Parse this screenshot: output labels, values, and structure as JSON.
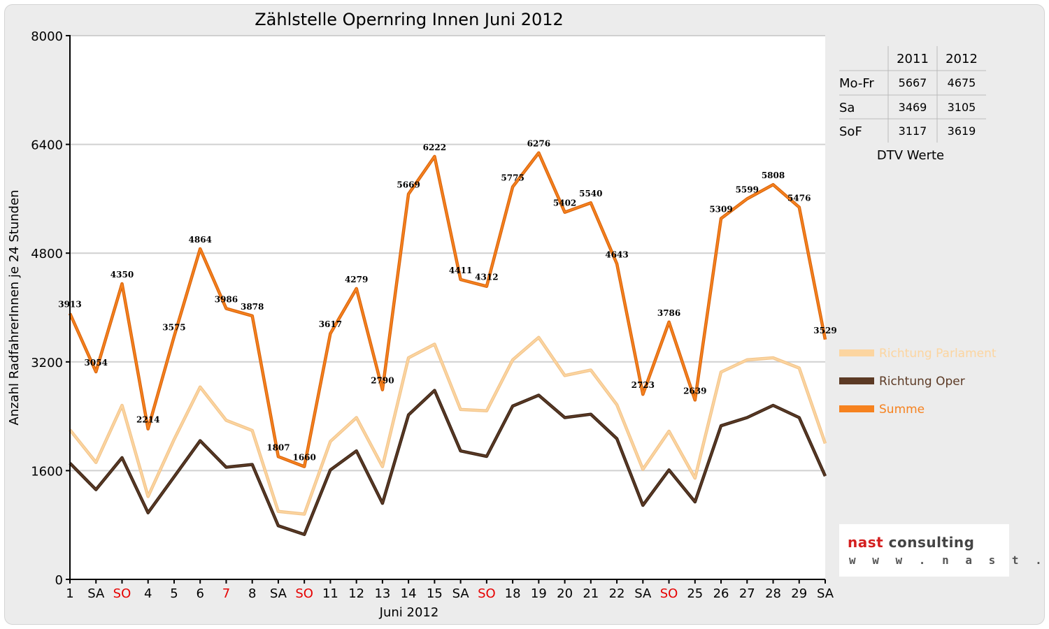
{
  "chart_data": {
    "type": "line",
    "title": "Zählstelle Opernring Innen Juni 2012",
    "xlabel": "Juni 2012",
    "ylabel": "Anzahl RadfahrerInnen je 24 Stunden",
    "ylim": [
      0,
      8000
    ],
    "yticks": [
      0,
      1600,
      3200,
      4800,
      6400,
      8000
    ],
    "grid": true,
    "legend_position": "right",
    "categories": [
      "1",
      "SA",
      "SO",
      "4",
      "5",
      "6",
      "7",
      "8",
      "SA",
      "SO",
      "11",
      "12",
      "13",
      "14",
      "15",
      "SA",
      "SO",
      "18",
      "19",
      "20",
      "21",
      "22",
      "SA",
      "SO",
      "25",
      "26",
      "27",
      "28",
      "29",
      "SA"
    ],
    "highlighted_categories": [
      2,
      6,
      9,
      16,
      23
    ],
    "series": [
      {
        "name": "Richtung Parlament",
        "color": "#fcd5a0",
        "values": [
          2200,
          1720,
          2560,
          1220,
          2060,
          2830,
          2340,
          2190,
          1000,
          960,
          2030,
          2380,
          1660,
          3260,
          3460,
          2500,
          2480,
          3230,
          3560,
          3000,
          3080,
          2570,
          1620,
          2180,
          1490,
          3050,
          3230,
          3260,
          3110,
          2000
        ],
        "labels": null
      },
      {
        "name": "Richtung Oper",
        "color": "#5c3a25",
        "values": [
          1710,
          1320,
          1790,
          980,
          1510,
          2040,
          1650,
          1690,
          790,
          660,
          1610,
          1890,
          1120,
          2420,
          2780,
          1890,
          1810,
          2550,
          2710,
          2380,
          2430,
          2070,
          1090,
          1610,
          1140,
          2260,
          2380,
          2560,
          2380,
          1520
        ],
        "labels": null
      },
      {
        "name": "Summe",
        "color": "#f6821f",
        "values": [
          3913,
          3054,
          4350,
          2214,
          3575,
          4864,
          3986,
          3878,
          1807,
          1660,
          3617,
          4279,
          2790,
          5669,
          6222,
          4411,
          4312,
          5775,
          6276,
          5402,
          5540,
          4643,
          2723,
          3786,
          2639,
          5309,
          5599,
          5808,
          5476,
          3529
        ],
        "labels": [
          "3913",
          "3054",
          "4350",
          "2214",
          "3575",
          "4864",
          "3986",
          "3878",
          "1807",
          "1660",
          "3617",
          "4279",
          "2790",
          "5669",
          "6222",
          "4411",
          "4312",
          "5775",
          "6276",
          "5402",
          "5540",
          "4643",
          "2723",
          "3786",
          "2639",
          "5309",
          "5599",
          "5808",
          "5476",
          "3529"
        ]
      }
    ],
    "dtv_table": {
      "caption": "DTV Werte",
      "columns": [
        "2011",
        "2012"
      ],
      "rows": [
        {
          "label": "Mo-Fr",
          "values": [
            "5667",
            "4675"
          ]
        },
        {
          "label": "Sa",
          "values": [
            "3469",
            "3105"
          ]
        },
        {
          "label": "SoF",
          "values": [
            "3117",
            "3619"
          ]
        }
      ]
    }
  },
  "logo": {
    "name": "nast consulting",
    "url": "w w w . n a s t . a t"
  },
  "colors": {
    "highlight_day": "#e60000",
    "grid": "#d0d0d0",
    "background": "#ececec"
  }
}
